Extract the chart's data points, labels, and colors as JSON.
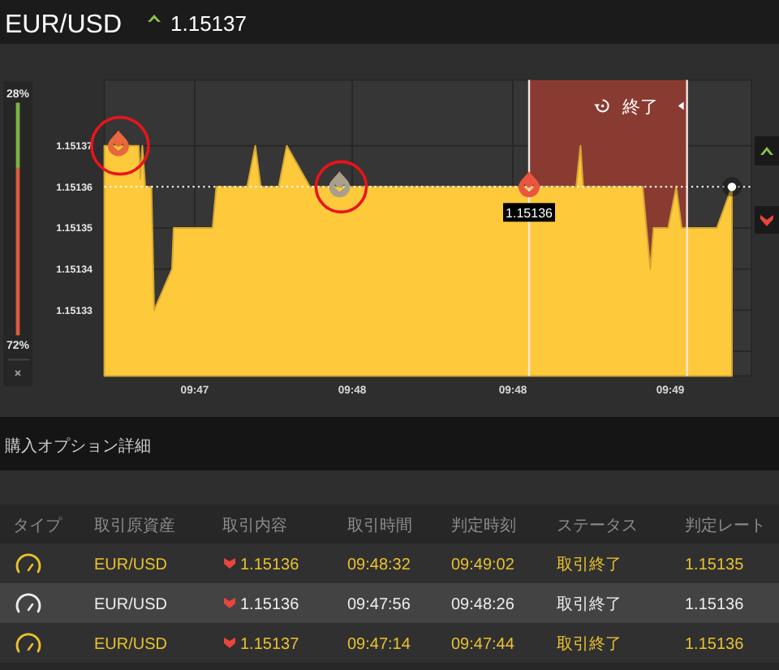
{
  "chart_data": [
    {
      "type": "area",
      "title": "EUR/USD",
      "subtitle": "1.15137",
      "x": [
        9.78648,
        9.788294,
        9.78838,
        9.788483,
        9.788639,
        9.788964,
        9.789108,
        9.79005,
        9.790136,
        9.792191,
        9.792389,
        9.794014,
        9.794444,
        9.794733,
        9.795677,
        9.796105,
        9.797327,
        9.811372,
        9.811602,
        9.811741,
        9.814883,
        9.81508,
        9.815286,
        9.815455,
        9.816227,
        9.816655,
        9.816939,
        9.818797,
        9.819591
      ],
      "series": [
        {
          "type": "area",
          "color": "#ffc93c",
          "values": [
            1.15137,
            1.15137,
            1.151362,
            1.15137,
            1.15136,
            1.15136,
            1.15133,
            1.15134,
            1.15135,
            1.15135,
            1.15136,
            1.15136,
            1.15137,
            1.15136,
            1.15136,
            1.15137,
            1.15136,
            1.15136,
            1.15137,
            1.15136,
            1.15136,
            1.15135,
            1.15134,
            1.15135,
            1.15135,
            1.15136,
            1.15135,
            1.15135,
            1.15136
          ]
        },
        {
          "type": "scatter",
          "x": [
            9.787222,
            9.798889,
            9.808889
          ],
          "values": [
            1.15137,
            1.15136,
            1.15136
          ],
          "colors": [
            "#e8673c",
            "#a8a08c",
            "#e9553f"
          ],
          "value_labels": [
            null,
            null,
            "1.15136"
          ]
        },
        {
          "type": "scatter",
          "x": [
            9.819591
          ],
          "values": [
            1.15136
          ],
          "color": "#ffffff",
          "marker": "circle"
        }
      ],
      "xlim": [
        9.78648,
        9.820619
      ],
      "xticks": [
        {
          "value": 9.79125,
          "label": "09:47"
        },
        {
          "value": 9.799556,
          "label": "09:48"
        },
        {
          "value": 9.808033,
          "label": "09:48"
        },
        {
          "value": 9.816339,
          "label": "09:49"
        }
      ],
      "ylim": [
        1.151314,
        1.151386
      ],
      "yticks": [
        {
          "value": 1.15132,
          "label": null
        },
        1.15133,
        1.15134,
        1.15135,
        1.15136,
        1.15137
      ],
      "grid": true,
      "ref_lines": [
        {
          "axis": "x",
          "value": 9.808889,
          "color": "#f3e6e2",
          "line_style": "solid"
        },
        {
          "axis": "x",
          "value": 9.817222,
          "color": "#f3e6e2",
          "line_style": "solid"
        },
        {
          "axis": "y",
          "value": 1.15136,
          "color": "#ffffff",
          "line_style": "dotted"
        }
      ],
      "bands": [
        {
          "axis": "x",
          "from": 9.808889,
          "to": 9.817222,
          "label": "終了",
          "color": "#8a3b31"
        }
      ]
    },
    {
      "type": "bar",
      "stacked": true,
      "categories": [
        null
      ],
      "series": [
        {
          "color": "#d95b3c",
          "values": [
            72
          ],
          "value_labels": [
            "72%"
          ]
        },
        {
          "color": "#7cb342",
          "values": [
            28
          ],
          "value_labels": [
            "28%"
          ]
        }
      ]
    },
    {
      "type": "other",
      "title": "購入オプション詳細",
      "categories": [
        "タイプ",
        "取引原資産",
        "取引内容",
        "取引時間",
        "判定時刻",
        "ステータス",
        "判定レート"
      ],
      "annotations": [
        "EUR/USD",
        "1.15136",
        "09:48:32",
        "09:49:02",
        "取引終了",
        "1.15135",
        "EUR/USD",
        "1.15136",
        "09:47:56",
        "09:48:26",
        "取引終了",
        "1.15136",
        "EUR/USD",
        "1.15137",
        "09:47:14",
        "09:47:44",
        "取引終了",
        "1.15136"
      ]
    }
  ]
}
